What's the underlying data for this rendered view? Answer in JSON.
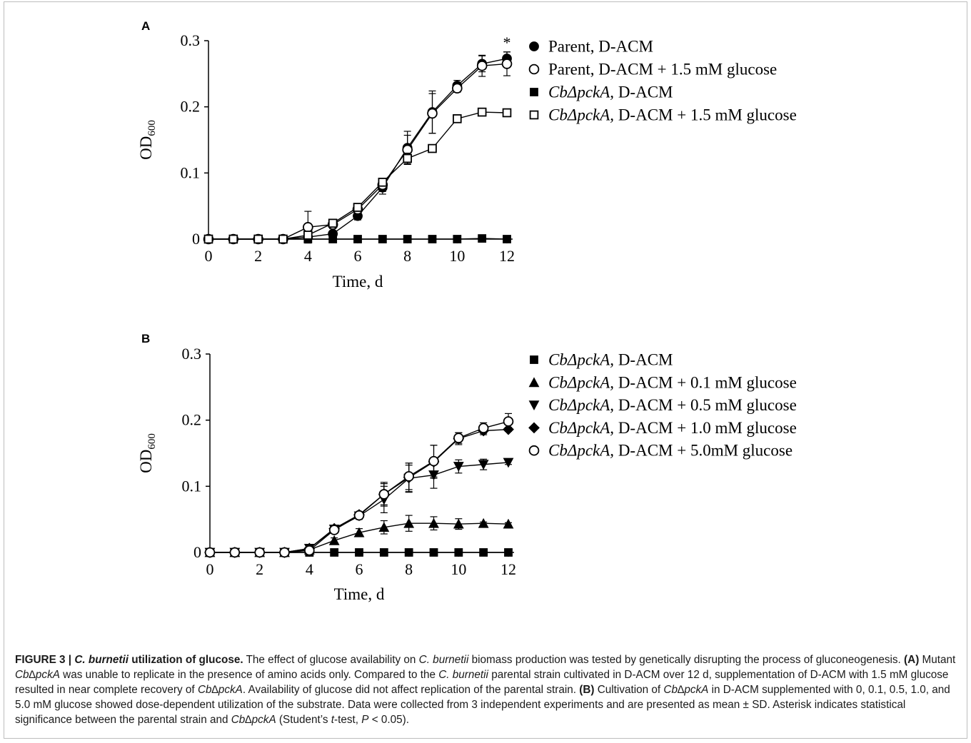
{
  "panels": [
    {
      "label": "A",
      "legend": [
        {
          "marker": "circle-filled",
          "parts": [
            {
              "t": "Parent, D-ACM",
              "i": false
            }
          ]
        },
        {
          "marker": "circle-open",
          "parts": [
            {
              "t": "Parent, D-ACM + 1.5 mM glucose",
              "i": false
            }
          ]
        },
        {
          "marker": "square-filled",
          "parts": [
            {
              "t": "CbΔpckA,",
              "i": true
            },
            {
              "t": " D-ACM",
              "i": false
            }
          ]
        },
        {
          "marker": "square-open",
          "parts": [
            {
              "t": "CbΔpckA,",
              "i": true
            },
            {
              "t": " D-ACM + 1.5 mM glucose",
              "i": false
            }
          ]
        }
      ],
      "annotation": "*"
    },
    {
      "label": "B",
      "legend": [
        {
          "marker": "square-filled",
          "parts": [
            {
              "t": "CbΔpckA,",
              "i": true
            },
            {
              "t": " D-ACM",
              "i": false
            }
          ]
        },
        {
          "marker": "triangle-up",
          "parts": [
            {
              "t": "CbΔpckA,",
              "i": true
            },
            {
              "t": " D-ACM + 0.1 mM glucose",
              "i": false
            }
          ]
        },
        {
          "marker": "triangle-down",
          "parts": [
            {
              "t": "CbΔpckA,",
              "i": true
            },
            {
              "t": " D-ACM + 0.5 mM glucose",
              "i": false
            }
          ]
        },
        {
          "marker": "diamond",
          "parts": [
            {
              "t": "CbΔpckA,",
              "i": true
            },
            {
              "t": " D-ACM + 1.0 mM glucose",
              "i": false
            }
          ]
        },
        {
          "marker": "circle-open",
          "parts": [
            {
              "t": "CbΔpckA,",
              "i": true
            },
            {
              "t": " D-ACM + 5.0mM glucose",
              "i": false
            }
          ]
        }
      ],
      "annotation": ""
    }
  ],
  "chart_data": [
    {
      "type": "line",
      "panel": "A",
      "xlabel": "Time, d",
      "ylabel": "OD",
      "ylabel_sub": "600",
      "xlim": [
        0,
        12
      ],
      "ylim": [
        0,
        0.3
      ],
      "x_ticks": [
        0,
        2,
        4,
        6,
        8,
        10,
        12
      ],
      "y_ticks": [
        0,
        0.1,
        0.2,
        0.3
      ],
      "y_tick_labels": [
        "0",
        "0.1",
        "0.2",
        "0.3"
      ],
      "grid": false,
      "legend_position": "right",
      "x": [
        0,
        1,
        2,
        3,
        4,
        5,
        6,
        7,
        8,
        9,
        10,
        11,
        12
      ],
      "series": [
        {
          "name": "Parent, D-ACM",
          "marker": "circle-filled",
          "values": [
            0,
            0,
            0,
            0,
            0.003,
            0.008,
            0.035,
            0.078,
            0.138,
            0.192,
            0.232,
            0.265,
            0.273
          ],
          "errors": [
            0,
            0,
            0,
            0,
            0.002,
            0.004,
            0.006,
            0.01,
            0.025,
            0.032,
            0.008,
            0.012,
            0.01
          ]
        },
        {
          "name": "Parent, D-ACM + 1.5 mM glucose",
          "marker": "circle-open",
          "values": [
            0,
            0,
            0,
            0,
            0.018,
            0.022,
            0.045,
            0.082,
            0.135,
            0.19,
            0.228,
            0.262,
            0.265
          ],
          "errors": [
            0,
            0,
            0,
            0,
            0.024,
            0.006,
            0.005,
            0.01,
            0.022,
            0.03,
            0.006,
            0.016,
            0.018
          ]
        },
        {
          "name": "CbΔpckA, D-ACM",
          "marker": "square-filled",
          "values": [
            0,
            0,
            0,
            0,
            0,
            0,
            0,
            0,
            0,
            0,
            0,
            0.001,
            0
          ],
          "errors": [
            0,
            0,
            0,
            0,
            0,
            0,
            0,
            0,
            0,
            0,
            0,
            0,
            0
          ]
        },
        {
          "name": "CbΔpckA, D-ACM + 1.5 mM glucose",
          "marker": "square-open",
          "values": [
            0,
            0,
            0,
            0,
            0.006,
            0.024,
            0.048,
            0.086,
            0.122,
            0.137,
            0.182,
            0.192,
            0.191
          ],
          "errors": [
            0,
            0,
            0,
            0,
            0.003,
            0.004,
            0.004,
            0.006,
            0.008,
            0.004,
            0.006,
            0.004,
            0.003
          ]
        }
      ]
    },
    {
      "type": "line",
      "panel": "B",
      "xlabel": "Time, d",
      "ylabel": "OD",
      "ylabel_sub": "600",
      "xlim": [
        0,
        12
      ],
      "ylim": [
        0,
        0.3
      ],
      "x_ticks": [
        0,
        2,
        4,
        6,
        8,
        10,
        12
      ],
      "y_ticks": [
        0,
        0.1,
        0.2,
        0.3
      ],
      "y_tick_labels": [
        "0",
        "0.1",
        "0.2",
        "0.3"
      ],
      "grid": false,
      "legend_position": "right",
      "x": [
        0,
        1,
        2,
        3,
        4,
        5,
        6,
        7,
        8,
        9,
        10,
        11,
        12
      ],
      "series": [
        {
          "name": "CbΔpckA, D-ACM",
          "marker": "square-filled",
          "values": [
            0,
            0,
            0,
            0,
            0,
            0,
            0,
            0,
            0,
            0,
            0,
            0,
            0
          ],
          "errors": [
            0,
            0,
            0,
            0,
            0,
            0,
            0,
            0,
            0,
            0,
            0,
            0,
            0
          ]
        },
        {
          "name": "CbΔpckA, D-ACM + 0.1 mM glucose",
          "marker": "triangle-up",
          "values": [
            0,
            0,
            0,
            0,
            0.004,
            0.018,
            0.03,
            0.038,
            0.044,
            0.044,
            0.043,
            0.044,
            0.043
          ],
          "errors": [
            0,
            0,
            0,
            0,
            0.002,
            0.004,
            0.006,
            0.01,
            0.012,
            0.01,
            0.008,
            0.002,
            0.002
          ]
        },
        {
          "name": "CbΔpckA, D-ACM + 0.5 mM glucose",
          "marker": "triangle-down",
          "values": [
            0,
            0,
            0,
            0,
            0.006,
            0.035,
            0.055,
            0.08,
            0.112,
            0.117,
            0.13,
            0.133,
            0.136
          ],
          "errors": [
            0,
            0,
            0,
            0,
            0.003,
            0.006,
            0.005,
            0.02,
            0.02,
            0.02,
            0.01,
            0.008,
            0.003
          ]
        },
        {
          "name": "CbΔpckA, D-ACM + 1.0 mM glucose",
          "marker": "diamond",
          "values": [
            0,
            0,
            0,
            0,
            0.006,
            0.036,
            0.057,
            0.088,
            0.113,
            0.137,
            0.172,
            0.184,
            0.186
          ],
          "errors": [
            0,
            0,
            0,
            0,
            0.003,
            0.005,
            0.004,
            0.018,
            0.022,
            0.025,
            0.009,
            0.006,
            0.003
          ]
        },
        {
          "name": "CbΔpckA, D-ACM + 5.0mM glucose",
          "marker": "circle-open",
          "values": [
            0,
            0,
            0,
            0,
            0.003,
            0.034,
            0.056,
            0.088,
            0.115,
            0.138,
            0.173,
            0.188,
            0.198
          ],
          "errors": [
            0,
            0,
            0,
            0,
            0.002,
            0.005,
            0.004,
            0.016,
            0.02,
            0.024,
            0.008,
            0.008,
            0.012
          ]
        }
      ]
    }
  ],
  "caption": [
    {
      "t": "FIGURE 3 | ",
      "b": true
    },
    {
      "t": "C. burnetii",
      "b": true,
      "i": true
    },
    {
      "t": " utilization of glucose.",
      "b": true
    },
    {
      "t": " The effect of glucose availability on "
    },
    {
      "t": "C. burnetii",
      "i": true
    },
    {
      "t": " biomass production was tested by genetically disrupting the process of gluconeogenesis. "
    },
    {
      "t": "(A)",
      "b": true
    },
    {
      "t": " Mutant "
    },
    {
      "t": "Cb∆pckA",
      "i": true
    },
    {
      "t": " was unable to replicate in the presence of amino acids only. Compared to the "
    },
    {
      "t": "C. burnetii",
      "i": true
    },
    {
      "t": " parental strain cultivated in D-ACM over 12 d, supplementation of D-ACM with 1.5 mM glucose resulted in near complete recovery of "
    },
    {
      "t": "Cb∆pckA",
      "i": true
    },
    {
      "t": ". Availability of glucose did not affect replication of the parental strain. "
    },
    {
      "t": "(B)",
      "b": true
    },
    {
      "t": " Cultivation of "
    },
    {
      "t": "Cb∆pckA",
      "i": true
    },
    {
      "t": " in D-ACM supplemented with 0, 0.1, 0.5, 1.0, and 5.0 mM glucose showed dose-dependent utilization of the substrate. Data were collected from 3 independent experiments and are presented as mean ± SD. Asterisk indicates statistical significance between the parental strain and "
    },
    {
      "t": "Cb∆pckA",
      "i": true
    },
    {
      "t": " (Student’s "
    },
    {
      "t": "t",
      "i": true
    },
    {
      "t": "-test, "
    },
    {
      "t": "P",
      "i": true
    },
    {
      "t": " < 0.05)."
    }
  ]
}
